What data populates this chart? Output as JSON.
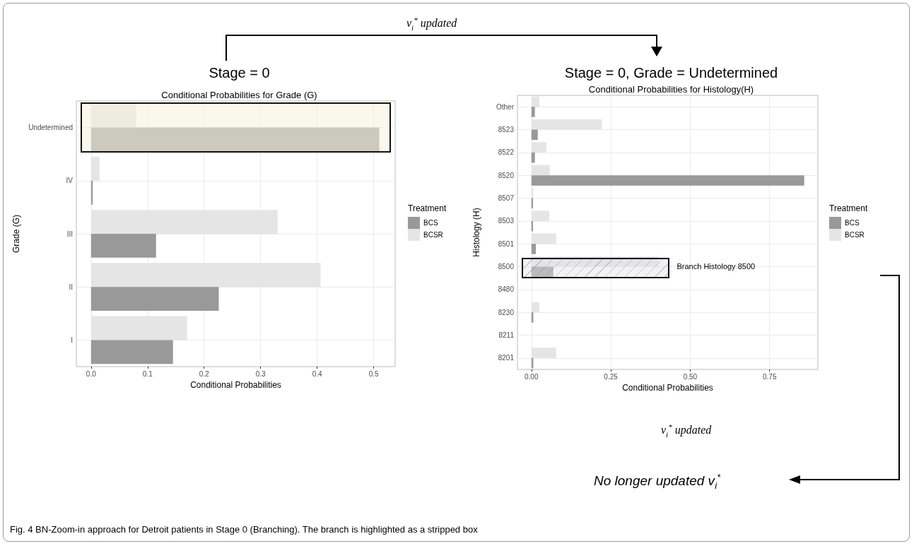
{
  "chart_data": [
    {
      "type": "bar",
      "orientation": "horizontal",
      "title": "Stage = 0",
      "subtitle": "Conditional Probabilities for Grade (G)",
      "xlabel": "Conditional Probabilities",
      "ylabel": "Grade (G)",
      "legend_title": "Treatment",
      "categories": [
        "Undetermined",
        "IV",
        "III",
        "II",
        "I"
      ],
      "series": [
        {
          "name": "BCS",
          "color": "#999999",
          "values": [
            0.51,
            0.003,
            0.115,
            0.226,
            0.145
          ]
        },
        {
          "name": "BCSR",
          "color": "#e5e5e5",
          "values": [
            0.08,
            0.015,
            0.33,
            0.406,
            0.17
          ]
        }
      ],
      "xlim": [
        -0.026,
        0.538
      ],
      "xticks": [
        {
          "value": 0,
          "label": "0.0"
        },
        0.1,
        0.2,
        0.3,
        0.4,
        0.5
      ],
      "bands": [
        {
          "axis": "y",
          "from": "Undetermined",
          "to": "Undetermined",
          "color": "#f5f0dc"
        }
      ],
      "grid": true,
      "legend": "right",
      "annotations": [
        "v$_{i}$$^{*}$ updated",
        "Fig. 4 BN-Zoom-in approach for Detroit patients in Stage 0 (Branching). The branch is highlighted as a stripped box"
      ]
    },
    {
      "type": "bar",
      "orientation": "horizontal",
      "title": "Stage = 0, Grade = Undetermined",
      "subtitle": "Conditional Probabilities for Histology(H)",
      "xlabel": "Conditional Probabilities",
      "ylabel": "Histology (H)",
      "legend_title": "Treatment",
      "categories": [
        "Other",
        "8523",
        "8522",
        "8520",
        "8507",
        "8503",
        "8501",
        "8500",
        "8480",
        "8230",
        "8211",
        "8201"
      ],
      "series": [
        {
          "name": "BCS",
          "color": "#999999",
          "values": [
            0.011,
            0.02,
            0.011,
            0.859,
            0.005,
            0.005,
            0.014,
            0.069,
            0,
            0.006,
            0,
            0.006
          ]
        },
        {
          "name": "BCSR",
          "color": "#e5e5e5",
          "values": [
            0.025,
            0.222,
            0.047,
            0.058,
            0.006,
            0.056,
            0.078,
            0.4,
            0,
            0.025,
            0,
            0.078
          ]
        }
      ],
      "xlim": [
        -0.044,
        0.902
      ],
      "xticks": [
        {
          "value": 0,
          "label": "0.00"
        },
        {
          "value": 0.25,
          "label": "0.25"
        },
        {
          "value": 0.5,
          "label": "0.50"
        },
        {
          "value": 0.75,
          "label": "0.75"
        }
      ],
      "bands": [
        {
          "axis": "y",
          "from": "8500",
          "to": "8500",
          "label": "Branch Histology 8500",
          "color": "#dde3ea"
        }
      ],
      "grid": true,
      "legend": "right",
      "annotations": [
        "v$_{i}$$^{*}$ updated",
        "No longer updated v$_{i}$$^{*}$"
      ]
    }
  ]
}
